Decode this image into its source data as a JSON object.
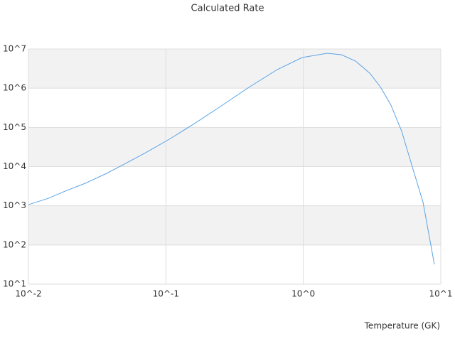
{
  "chart_data": {
    "type": "line",
    "title": "Calculated Rate",
    "x_label": "Temperature (GK)",
    "x": [
      0.01,
      0.01396,
      0.01815,
      0.0259,
      0.0371,
      0.0499,
      0.0713,
      0.108,
      0.164,
      0.249,
      0.401,
      0.645,
      0.98,
      1.49,
      1.89,
      2.4,
      3.04,
      3.63,
      4.34,
      5.2,
      6.21,
      7.43,
      8.98
    ],
    "values": [
      1070,
      1550,
      2300,
      3750,
      6730,
      11600,
      22600,
      52000,
      130000,
      340000,
      1050000,
      2980000,
      6050000,
      7780000,
      7160000,
      4920000,
      2420000,
      1090000,
      370000,
      78900,
      9800,
      1220,
      32
    ],
    "color": "#5ba3e6",
    "x_log": true,
    "y_log": true,
    "grid": true,
    "xlim": [
      0.01,
      10
    ],
    "xticks": [
      {
        "value": 0.01,
        "label": "10^-2"
      },
      {
        "value": 0.1,
        "label": "10^-1"
      },
      {
        "value": 1,
        "label": "10^0"
      },
      {
        "value": 10,
        "label": "10^1"
      }
    ],
    "ylim": [
      10,
      10000000
    ],
    "yticks": [
      {
        "value": 10,
        "label": "10^1"
      },
      {
        "value": 100,
        "label": "10^2"
      },
      {
        "value": 1000,
        "label": "10^3"
      },
      {
        "value": 10000,
        "label": "10^4"
      },
      {
        "value": 100000,
        "label": "10^5"
      },
      {
        "value": 1000000,
        "label": "10^6"
      },
      {
        "value": 10000000,
        "label": "10^7"
      }
    ]
  }
}
